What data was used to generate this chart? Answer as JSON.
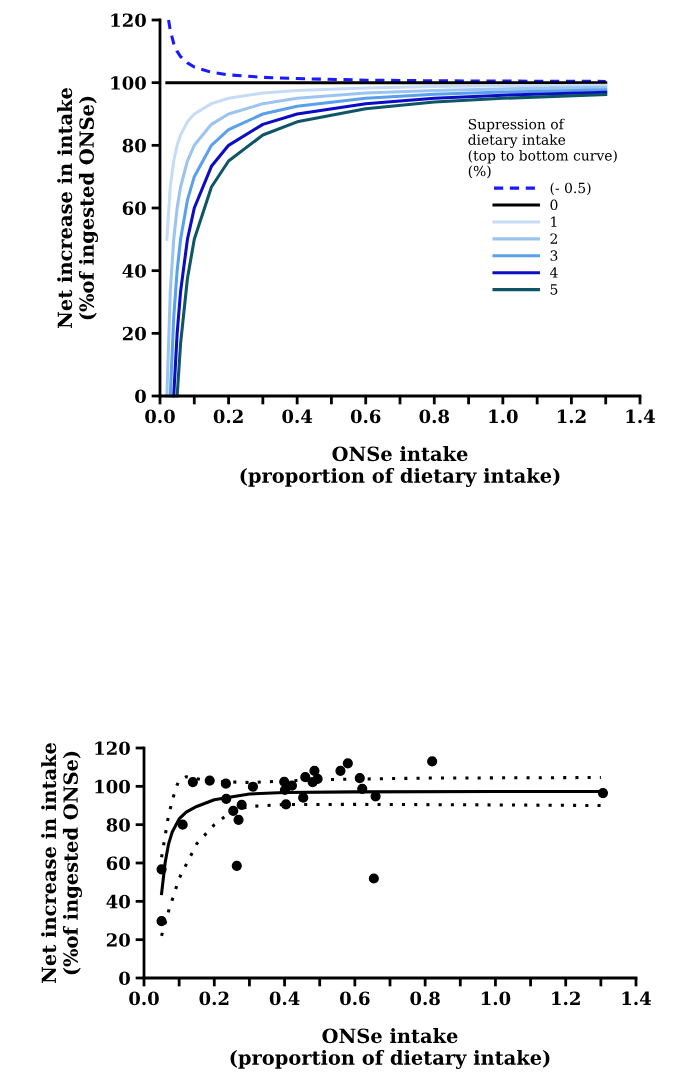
{
  "chart_data": [
    {
      "type": "line",
      "xlabel": "ONSe intake\n(proportion of dietary intake)",
      "ylabel": "Net increase in intake\n(%of ingested ONSe)",
      "xlim": [
        0,
        1.4
      ],
      "ylim": [
        0,
        120
      ],
      "xticks": [
        {
          "value": 0,
          "label": "0.0"
        },
        {
          "value": 0.1,
          "label": null
        },
        {
          "value": 0.2,
          "label": "0.2"
        },
        {
          "value": 0.3,
          "label": null
        },
        {
          "value": 0.4,
          "label": "0.4"
        },
        {
          "value": 0.5,
          "label": null
        },
        {
          "value": 0.6,
          "label": "0.6"
        },
        {
          "value": 0.7,
          "label": null
        },
        {
          "value": 0.8,
          "label": "0.8"
        },
        {
          "value": 0.9,
          "label": null
        },
        {
          "value": 1.0,
          "label": "1.0"
        },
        {
          "value": 1.1,
          "label": null
        },
        {
          "value": 1.2,
          "label": "1.2"
        },
        {
          "value": 1.3,
          "label": null
        },
        {
          "value": 1.4,
          "label": "1.4"
        }
      ],
      "yticks": [
        0,
        20,
        40,
        60,
        80,
        100,
        120
      ],
      "grid": false,
      "legend": "right",
      "marker": "none",
      "legend_title": "Supression of\ndietary intake\n(top to bottom curve)\n(%)",
      "series": [
        {
          "name": "(- 0.5)",
          "color": "#1a1aff",
          "line_style": "dashed",
          "x": [
            0.025,
            0.03,
            0.04,
            0.05,
            0.06,
            0.08,
            0.1,
            0.15,
            0.2,
            0.3,
            0.4,
            0.6,
            0.8,
            1.0,
            1.3
          ],
          "values": [
            120,
            116.7,
            112.5,
            110,
            108.3,
            106.3,
            105,
            103.3,
            102.5,
            101.7,
            101.3,
            100.8,
            100.6,
            100.5,
            100.4
          ]
        },
        {
          "name": "0",
          "color": "#000000",
          "line_style": "solid",
          "x": [
            0.02,
            1.3
          ],
          "values": [
            100,
            100
          ]
        },
        {
          "name": "1",
          "color": "#c6dcf6",
          "line_style": "solid",
          "x": [
            0.02,
            0.03,
            0.04,
            0.05,
            0.06,
            0.08,
            0.1,
            0.15,
            0.2,
            0.3,
            0.4,
            0.6,
            0.8,
            1.0,
            1.3
          ],
          "values": [
            50,
            66.7,
            75,
            80,
            83.3,
            87.5,
            90,
            93.3,
            95,
            96.7,
            97.5,
            98.3,
            98.8,
            99,
            99.2
          ]
        },
        {
          "name": "2",
          "color": "#9cc4f0",
          "line_style": "solid",
          "x": [
            0.02,
            0.03,
            0.04,
            0.05,
            0.06,
            0.08,
            0.1,
            0.15,
            0.2,
            0.3,
            0.4,
            0.6,
            0.8,
            1.0,
            1.3
          ],
          "values": [
            0,
            33.3,
            50,
            60,
            66.7,
            75,
            80,
            86.7,
            90,
            93.3,
            95,
            96.7,
            97.5,
            98,
            98.5
          ]
        },
        {
          "name": "3",
          "color": "#5aa0ec",
          "line_style": "solid",
          "x": [
            0.03,
            0.04,
            0.05,
            0.06,
            0.08,
            0.1,
            0.15,
            0.2,
            0.3,
            0.4,
            0.6,
            0.8,
            1.0,
            1.3
          ],
          "values": [
            0,
            25,
            40,
            50,
            62.5,
            70,
            80,
            85,
            90,
            92.5,
            95,
            96.3,
            97,
            97.7
          ]
        },
        {
          "name": "4",
          "color": "#0c0cc4",
          "line_style": "solid",
          "x": [
            0.04,
            0.05,
            0.06,
            0.08,
            0.1,
            0.15,
            0.2,
            0.3,
            0.4,
            0.6,
            0.8,
            1.0,
            1.3
          ],
          "values": [
            0,
            20,
            33.3,
            50,
            60,
            73.3,
            80,
            86.7,
            90,
            93.3,
            95,
            96,
            96.9
          ]
        },
        {
          "name": "5",
          "color": "#0e5566",
          "line_style": "solid",
          "x": [
            0.05,
            0.06,
            0.08,
            0.1,
            0.15,
            0.2,
            0.3,
            0.4,
            0.6,
            0.8,
            1.0,
            1.3
          ],
          "values": [
            0,
            16.7,
            37.5,
            50,
            66.7,
            75,
            83.3,
            87.5,
            91.7,
            93.8,
            95,
            96.2
          ]
        }
      ]
    },
    {
      "type": "scatter",
      "xlabel": "ONSe intake\n(proportion of dietary intake)",
      "ylabel": "Net increase in intake\n(%of ingested ONSe)",
      "xlim": [
        0,
        1.4
      ],
      "ylim": [
        0,
        120
      ],
      "xticks": [
        {
          "value": 0,
          "label": "0.0"
        },
        {
          "value": 0.1,
          "label": null
        },
        {
          "value": 0.2,
          "label": "0.2"
        },
        {
          "value": 0.3,
          "label": null
        },
        {
          "value": 0.4,
          "label": "0.4"
        },
        {
          "value": 0.5,
          "label": null
        },
        {
          "value": 0.6,
          "label": "0.6"
        },
        {
          "value": 0.7,
          "label": null
        },
        {
          "value": 0.8,
          "label": "0.8"
        },
        {
          "value": 0.9,
          "label": null
        },
        {
          "value": 1.0,
          "label": "1.0"
        },
        {
          "value": 1.1,
          "label": null
        },
        {
          "value": 1.2,
          "label": "1.2"
        },
        {
          "value": 1.3,
          "label": null
        },
        {
          "value": 1.4,
          "label": "1.4"
        }
      ],
      "yticks": [
        0,
        20,
        40,
        60,
        80,
        100,
        120
      ],
      "grid": false,
      "legend": false,
      "series": [
        {
          "type": "scatter",
          "color": "#000000",
          "marker": "circle",
          "x": [
            0.05,
            0.05,
            0.11,
            0.139,
            0.187,
            0.233,
            0.234,
            0.254,
            0.269,
            0.264,
            0.278,
            0.31,
            0.399,
            0.401,
            0.421,
            0.404,
            0.453,
            0.459,
            0.485,
            0.48,
            0.494,
            0.559,
            0.58,
            0.614,
            0.621,
            0.654,
            0.659,
            0.82,
            1.306
          ],
          "values": [
            56.7,
            29.7,
            80,
            102.2,
            103,
            101.4,
            93.5,
            87.2,
            82.5,
            58.5,
            90.3,
            99.8,
            102.4,
            98.1,
            100.4,
            90.6,
            94.1,
            104.8,
            108.1,
            102.2,
            103.9,
            108.1,
            112,
            104.3,
            98.7,
            51.9,
            94.8,
            113,
            96.5
          ]
        },
        {
          "type": "line",
          "color": "#000000",
          "line_style": "solid",
          "marker": "none",
          "x": [
            0.05,
            0.06,
            0.07,
            0.08,
            0.1,
            0.12,
            0.15,
            0.2,
            0.3,
            0.4,
            0.6,
            1.0,
            1.3
          ],
          "values": [
            44,
            60,
            70,
            76,
            83,
            86.5,
            89.5,
            93,
            96,
            96.8,
            97.1,
            97.3,
            97.3
          ]
        },
        {
          "type": "line",
          "color": "#000000",
          "line_style": "dotted",
          "marker": "none",
          "x": [
            0.05,
            0.07,
            0.09,
            0.1,
            0.12,
            0.15,
            0.2,
            0.3,
            0.5,
            0.8,
            1.3
          ],
          "values": [
            63,
            85,
            99,
            103,
            105,
            104,
            102.5,
            102,
            103.5,
            104.3,
            104.6
          ]
        },
        {
          "type": "line",
          "color": "#000000",
          "line_style": "dotted",
          "marker": "none",
          "x": [
            0.05,
            0.07,
            0.1,
            0.15,
            0.2,
            0.25,
            0.3,
            0.4,
            0.6,
            1.0,
            1.3
          ],
          "values": [
            22,
            35,
            52,
            70,
            80,
            87,
            89.5,
            90.5,
            90.6,
            90.3,
            90
          ]
        }
      ]
    }
  ]
}
